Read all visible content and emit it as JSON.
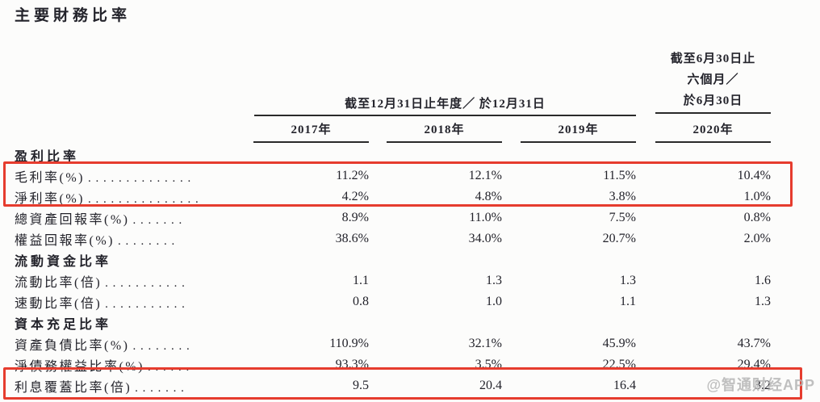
{
  "title": "主要財務比率",
  "header": {
    "group_annual": "截至12月31日止年度／ 於12月31日",
    "group_interim_lines": [
      "截至6月30日止",
      "六個月／",
      "於6月30日"
    ],
    "years": [
      "2017年",
      "2018年",
      "2019年",
      "2020年"
    ]
  },
  "rows": [
    {
      "type": "section",
      "label": "盈利比率"
    },
    {
      "type": "data",
      "label": "毛利率(%)",
      "leader": ". . . . . . . . . . . . . .",
      "values": [
        "11.2%",
        "12.1%",
        "11.5%",
        "10.4%"
      ],
      "highlighted": true
    },
    {
      "type": "data",
      "label": "淨利率(%)",
      "leader": ". . . . . . . . . . . . . . .",
      "values": [
        "4.2%",
        "4.8%",
        "3.8%",
        "1.0%"
      ],
      "highlighted": true
    },
    {
      "type": "data",
      "label": "總資產回報率(%)",
      "leader": ". . . . . . .",
      "values": [
        "8.9%",
        "11.0%",
        "7.5%",
        "0.8%"
      ],
      "highlighted": false
    },
    {
      "type": "data",
      "label": "權益回報率(%)",
      "leader": ". . . . . . . .",
      "values": [
        "38.6%",
        "34.0%",
        "20.7%",
        "2.0%"
      ],
      "highlighted": false
    },
    {
      "type": "section",
      "label": "流動資金比率"
    },
    {
      "type": "data",
      "label": "流動比率(倍)",
      "leader": ". . . . . . . . . . .",
      "values": [
        "1.1",
        "1.3",
        "1.3",
        "1.6"
      ],
      "highlighted": false
    },
    {
      "type": "data",
      "label": "速動比率(倍)",
      "leader": ". . . . . . . . . . .",
      "values": [
        "0.8",
        "1.0",
        "1.1",
        "1.3"
      ],
      "highlighted": false
    },
    {
      "type": "section",
      "label": "資本充足比率"
    },
    {
      "type": "data",
      "label": "資產負債比率(%)",
      "leader": ". . . . . . . .",
      "values": [
        "110.9%",
        "32.1%",
        "45.9%",
        "43.7%"
      ],
      "highlighted": false
    },
    {
      "type": "data",
      "label": "淨債務權益比率(%)",
      "leader": ". . . . . .",
      "values": [
        "93.3%",
        "3.5%",
        "22.5%",
        "29.4%"
      ],
      "highlighted": false
    },
    {
      "type": "data",
      "label": "利息覆蓋比率(倍)",
      "leader": ". . . . . . .",
      "values": [
        "9.5",
        "20.4",
        "16.4",
        "3.2"
      ],
      "highlighted": true
    }
  ],
  "annotations": {
    "highlight_box_count": 2
  },
  "watermark": "@智通财经APP",
  "colors": {
    "text": "#23232b",
    "highlight_border": "#e63c2e",
    "watermark": "#b5b5b5",
    "rule_line": "#2a2a2a"
  }
}
